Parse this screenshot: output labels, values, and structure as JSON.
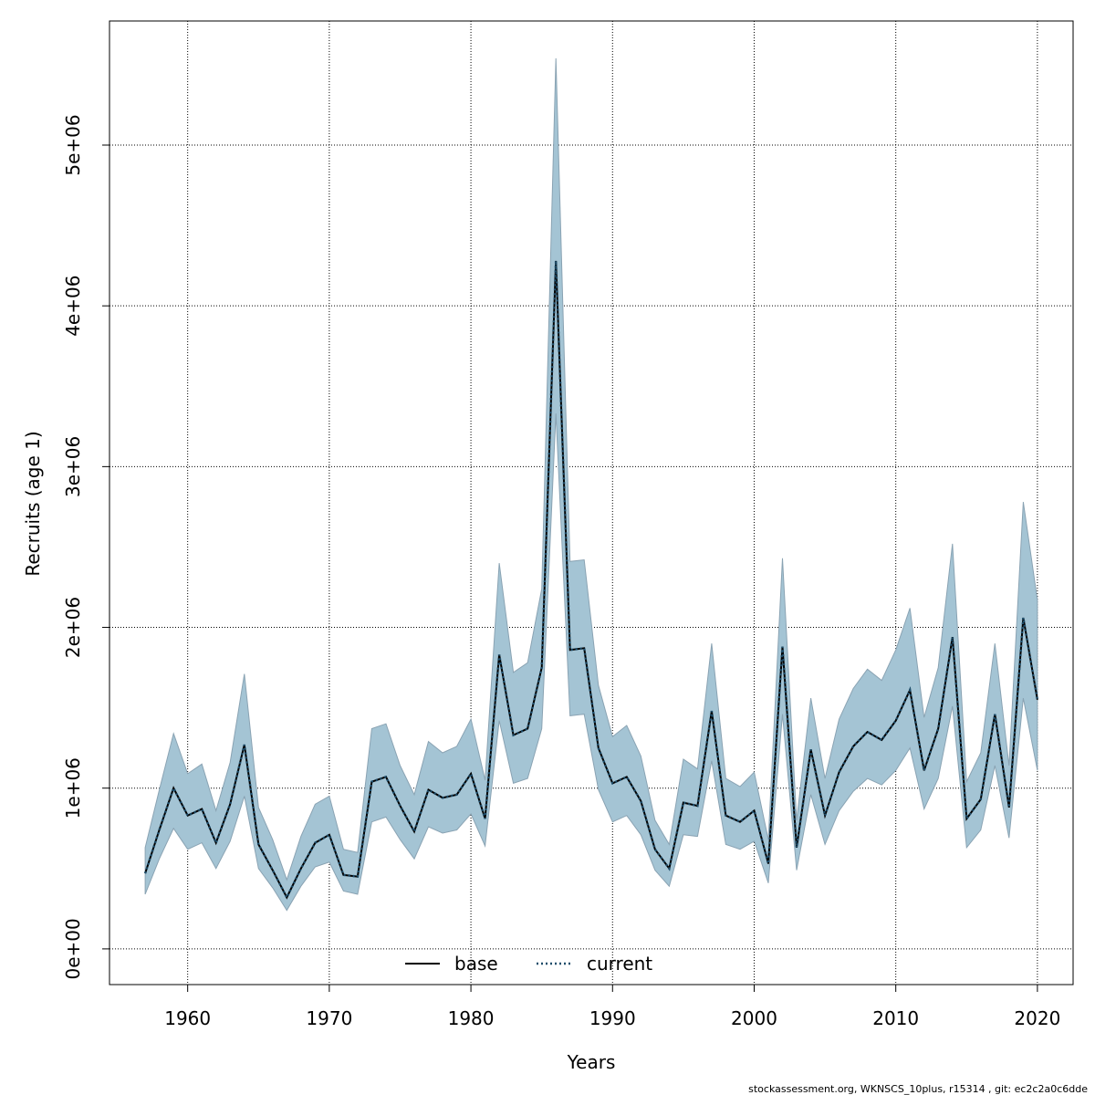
{
  "chart_data": {
    "type": "line",
    "xlabel": "Years",
    "ylabel": "Recruits (age 1)",
    "xlim": [
      1957,
      2020
    ],
    "ylim": [
      0,
      5550000
    ],
    "x_ticks": [
      1960,
      1970,
      1980,
      1990,
      2000,
      2010,
      2020
    ],
    "x_tick_labels": [
      "1960",
      "1970",
      "1980",
      "1990",
      "2000",
      "2010",
      "2020"
    ],
    "y_ticks": [
      0,
      1000000,
      2000000,
      3000000,
      4000000,
      5000000
    ],
    "y_tick_labels": [
      "0e+00",
      "1e+06",
      "2e+06",
      "3e+06",
      "4e+06",
      "5e+06"
    ],
    "grid": true,
    "legend_position": "bottom-center",
    "colors": {
      "band_fill": "#a4c4d4",
      "band_stroke": "#8aa3b3",
      "base_line": "#000000",
      "current_line": "#1f4e6b",
      "grid": "#000000"
    },
    "x": [
      1957,
      1958,
      1959,
      1960,
      1961,
      1962,
      1963,
      1964,
      1965,
      1966,
      1967,
      1968,
      1969,
      1970,
      1971,
      1972,
      1973,
      1974,
      1975,
      1976,
      1977,
      1978,
      1979,
      1980,
      1981,
      1982,
      1983,
      1984,
      1985,
      1986,
      1987,
      1988,
      1989,
      1990,
      1991,
      1992,
      1993,
      1994,
      1995,
      1996,
      1997,
      1998,
      1999,
      2000,
      2001,
      2002,
      2003,
      2004,
      2005,
      2006,
      2007,
      2008,
      2009,
      2010,
      2011,
      2012,
      2013,
      2014,
      2015,
      2016,
      2017,
      2018,
      2019,
      2020
    ],
    "series": [
      {
        "name": "base",
        "style": "solid",
        "values": [
          470000,
          740000,
          1000000,
          830000,
          870000,
          660000,
          900000,
          1270000,
          650000,
          490000,
          320000,
          500000,
          660000,
          710000,
          460000,
          450000,
          1040000,
          1070000,
          890000,
          730000,
          990000,
          940000,
          960000,
          1090000,
          810000,
          1830000,
          1330000,
          1370000,
          1750000,
          4280000,
          1860000,
          1870000,
          1250000,
          1030000,
          1070000,
          920000,
          620000,
          500000,
          910000,
          890000,
          1480000,
          830000,
          790000,
          860000,
          530000,
          1880000,
          630000,
          1240000,
          830000,
          1100000,
          1260000,
          1350000,
          1300000,
          1420000,
          1610000,
          1110000,
          1370000,
          1940000,
          810000,
          930000,
          1460000,
          880000,
          2060000,
          1550000
        ]
      },
      {
        "name": "current",
        "style": "dotted",
        "values": [
          470000,
          740000,
          1000000,
          830000,
          870000,
          660000,
          900000,
          1270000,
          650000,
          490000,
          320000,
          500000,
          660000,
          710000,
          460000,
          450000,
          1040000,
          1070000,
          890000,
          730000,
          990000,
          940000,
          960000,
          1090000,
          810000,
          1830000,
          1330000,
          1370000,
          1750000,
          4280000,
          1860000,
          1870000,
          1250000,
          1030000,
          1070000,
          920000,
          620000,
          500000,
          910000,
          890000,
          1480000,
          830000,
          790000,
          860000,
          530000,
          1880000,
          630000,
          1240000,
          830000,
          1100000,
          1260000,
          1350000,
          1300000,
          1420000,
          1610000,
          1110000,
          1370000,
          1940000,
          810000,
          930000,
          1460000,
          880000,
          2060000,
          1550000
        ]
      }
    ],
    "band": {
      "upper": [
        630000,
        990000,
        1340000,
        1090000,
        1150000,
        860000,
        1160000,
        1710000,
        880000,
        680000,
        430000,
        700000,
        900000,
        950000,
        620000,
        600000,
        1370000,
        1400000,
        1140000,
        960000,
        1290000,
        1220000,
        1260000,
        1430000,
        1050000,
        2400000,
        1720000,
        1780000,
        2240000,
        5540000,
        2410000,
        2420000,
        1640000,
        1320000,
        1390000,
        1200000,
        800000,
        650000,
        1180000,
        1120000,
        1900000,
        1060000,
        1010000,
        1100000,
        680000,
        2430000,
        800000,
        1560000,
        1060000,
        1430000,
        1620000,
        1740000,
        1670000,
        1860000,
        2120000,
        1440000,
        1750000,
        2520000,
        1040000,
        1220000,
        1900000,
        1140000,
        2780000,
        2170000
      ],
      "lower": [
        340000,
        560000,
        750000,
        620000,
        660000,
        500000,
        670000,
        950000,
        500000,
        380000,
        240000,
        390000,
        510000,
        540000,
        360000,
        340000,
        790000,
        820000,
        680000,
        560000,
        760000,
        720000,
        740000,
        840000,
        640000,
        1420000,
        1030000,
        1060000,
        1370000,
        3330000,
        1450000,
        1460000,
        990000,
        790000,
        830000,
        710000,
        490000,
        390000,
        710000,
        700000,
        1170000,
        650000,
        620000,
        670000,
        410000,
        1460000,
        490000,
        960000,
        650000,
        860000,
        980000,
        1060000,
        1020000,
        1110000,
        1250000,
        870000,
        1060000,
        1510000,
        630000,
        740000,
        1140000,
        690000,
        1560000,
        1110000
      ]
    }
  },
  "legend": {
    "items": [
      {
        "label": "base",
        "style": "solid"
      },
      {
        "label": "current",
        "style": "dotted"
      }
    ]
  },
  "footer": {
    "credit": "stockassessment.org, WKNSCS_10plus, r15314 , git: ec2c2a0c6dde"
  }
}
